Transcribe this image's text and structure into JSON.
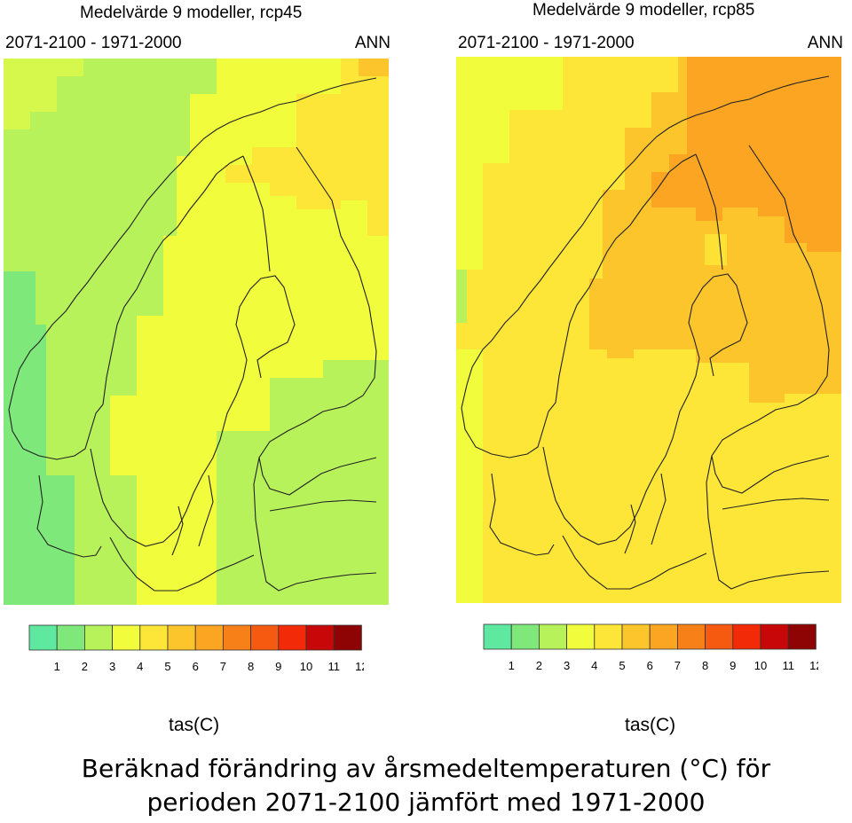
{
  "panels": [
    {
      "title": "Medelvärde 9 modeller, rcp45",
      "period": "2071-2100 - 1971-2000",
      "season": "ANN",
      "variable": "tas(C)"
    },
    {
      "title": "Medelvärde 9 modeller, rcp85",
      "period": "2071-2100 - 1971-2000",
      "season": "ANN",
      "variable": "tas(C)"
    }
  ],
  "colorbar": {
    "ticks": [
      "1",
      "2",
      "3",
      "4",
      "5",
      "6",
      "7",
      "8",
      "9",
      "10",
      "11",
      "12"
    ],
    "colors": [
      "#5ee8a0",
      "#7fe87a",
      "#b8f25a",
      "#f0fc3c",
      "#fde637",
      "#fdc52c",
      "#fba523",
      "#f88018",
      "#f55a10",
      "#f22a08",
      "#c80808",
      "#8e0404"
    ]
  },
  "caption": {
    "line1": "Beräknad förändring av årsmedeltemperaturen (°C) för",
    "line2": "perioden 2071-2100 jämfört med 1971-2000"
  }
}
